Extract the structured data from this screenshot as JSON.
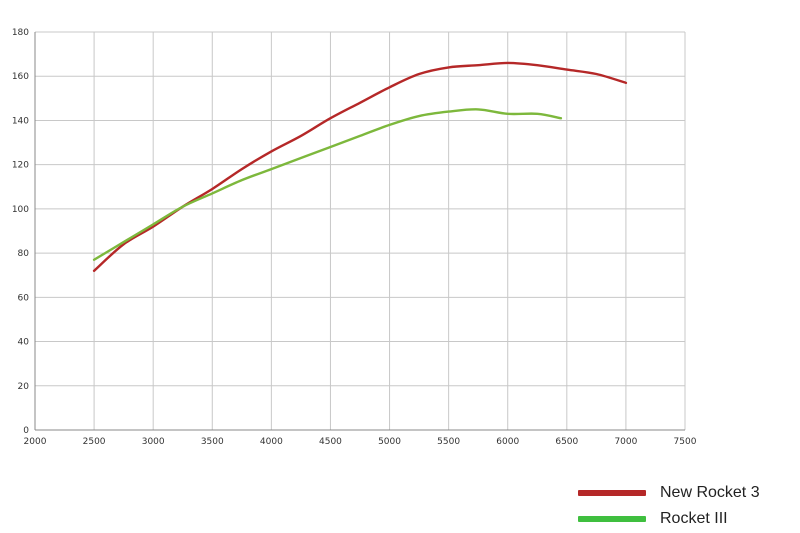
{
  "chart_data": {
    "type": "line",
    "title": "",
    "xlabel": "",
    "ylabel": "",
    "xlim": [
      2000,
      7500
    ],
    "ylim": [
      0,
      180
    ],
    "x_ticks": [
      2000,
      2500,
      3000,
      3500,
      4000,
      4500,
      5000,
      5500,
      6000,
      6500,
      7000,
      7500
    ],
    "y_ticks": [
      0,
      20,
      40,
      60,
      80,
      100,
      120,
      140,
      160,
      180
    ],
    "grid": true,
    "legend_position": "bottom-right",
    "series": [
      {
        "name": "New Rocket 3",
        "color": "#b52828",
        "points": [
          [
            2500,
            72
          ],
          [
            2750,
            84
          ],
          [
            3000,
            92
          ],
          [
            3250,
            101
          ],
          [
            3500,
            109
          ],
          [
            3750,
            118
          ],
          [
            4000,
            126
          ],
          [
            4250,
            133
          ],
          [
            4500,
            141
          ],
          [
            4750,
            148
          ],
          [
            5000,
            155
          ],
          [
            5250,
            161
          ],
          [
            5500,
            164
          ],
          [
            5750,
            165
          ],
          [
            6000,
            166
          ],
          [
            6250,
            165
          ],
          [
            6500,
            163
          ],
          [
            6750,
            161
          ],
          [
            7000,
            157
          ]
        ]
      },
      {
        "name": "Rocket III",
        "color": "#7db83c",
        "points": [
          [
            2500,
            77
          ],
          [
            2750,
            85
          ],
          [
            3000,
            93
          ],
          [
            3250,
            101
          ],
          [
            3500,
            107
          ],
          [
            3750,
            113
          ],
          [
            4000,
            118
          ],
          [
            4250,
            123
          ],
          [
            4500,
            128
          ],
          [
            4750,
            133
          ],
          [
            5000,
            138
          ],
          [
            5250,
            142
          ],
          [
            5500,
            144
          ],
          [
            5750,
            145
          ],
          [
            6000,
            143
          ],
          [
            6250,
            143
          ],
          [
            6450,
            141
          ]
        ]
      }
    ]
  },
  "legend": {
    "items": [
      {
        "label": "New Rocket 3",
        "color": "#b52828"
      },
      {
        "label": "Rocket III",
        "color": "#3fbf3f"
      }
    ]
  }
}
